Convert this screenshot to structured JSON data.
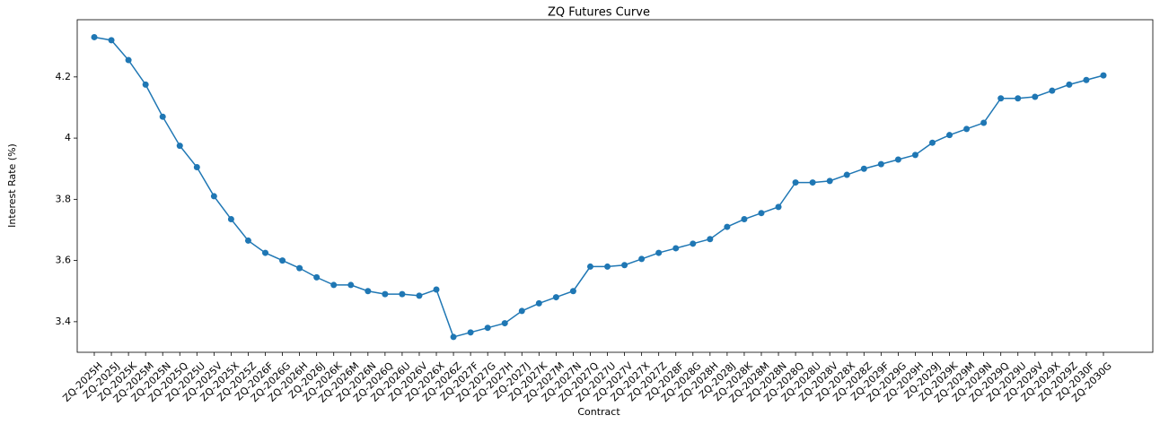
{
  "chart_data": {
    "type": "line",
    "title": "ZQ Futures Curve",
    "xlabel": "Contract",
    "ylabel": "Interest Rate (%)",
    "categories": [
      "ZQ-2025H",
      "ZQ-2025J",
      "ZQ-2025K",
      "ZQ-2025M",
      "ZQ-2025N",
      "ZQ-2025Q",
      "ZQ-2025U",
      "ZQ-2025V",
      "ZQ-2025X",
      "ZQ-2025Z",
      "ZQ-2026F",
      "ZQ-2026G",
      "ZQ-2026H",
      "ZQ-2026J",
      "ZQ-2026K",
      "ZQ-2026M",
      "ZQ-2026N",
      "ZQ-2026Q",
      "ZQ-2026U",
      "ZQ-2026V",
      "ZQ-2026X",
      "ZQ-2026Z",
      "ZQ-2027F",
      "ZQ-2027G",
      "ZQ-2027H",
      "ZQ-2027J",
      "ZQ-2027K",
      "ZQ-2027M",
      "ZQ-2027N",
      "ZQ-2027Q",
      "ZQ-2027U",
      "ZQ-2027V",
      "ZQ-2027X",
      "ZQ-2027Z",
      "ZQ-2028F",
      "ZQ-2028G",
      "ZQ-2028H",
      "ZQ-2028J",
      "ZQ-2028K",
      "ZQ-2028M",
      "ZQ-2028N",
      "ZQ-2028Q",
      "ZQ-2028U",
      "ZQ-2028V",
      "ZQ-2028X",
      "ZQ-2028Z",
      "ZQ-2029F",
      "ZQ-2029G",
      "ZQ-2029H",
      "ZQ-2029J",
      "ZQ-2029K",
      "ZQ-2029M",
      "ZQ-2029N",
      "ZQ-2029Q",
      "ZQ-2029U",
      "ZQ-2029V",
      "ZQ-2029X",
      "ZQ-2029Z",
      "ZQ-2030F",
      "ZQ-2030G"
    ],
    "series": [
      {
        "name": "ZQ",
        "color": "#1f77b4",
        "values": [
          4.33,
          4.32,
          4.255,
          4.175,
          4.07,
          3.975,
          3.905,
          3.81,
          3.735,
          3.665,
          3.625,
          3.6,
          3.575,
          3.545,
          3.52,
          3.52,
          3.5,
          3.49,
          3.49,
          3.485,
          3.505,
          3.35,
          3.365,
          3.38,
          3.395,
          3.435,
          3.46,
          3.48,
          3.5,
          3.58,
          3.58,
          3.585,
          3.605,
          3.625,
          3.64,
          3.655,
          3.67,
          3.71,
          3.735,
          3.755,
          3.775,
          3.855,
          3.855,
          3.86,
          3.88,
          3.9,
          3.915,
          3.93,
          3.945,
          3.985,
          4.01,
          4.03,
          4.05,
          4.13,
          4.13,
          4.135,
          4.155,
          4.175,
          4.19,
          4.205
        ]
      }
    ],
    "ylim": [
      3.3,
      4.387
    ],
    "yticks": [
      3.4,
      3.6,
      3.8,
      4.0,
      4.2
    ]
  }
}
